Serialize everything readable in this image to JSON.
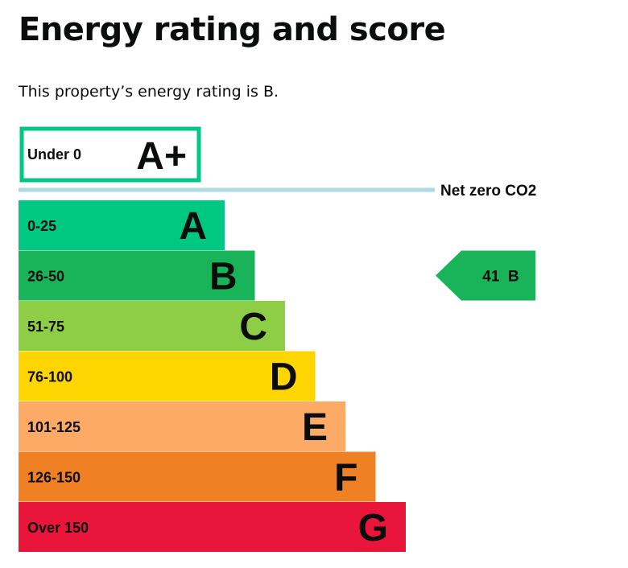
{
  "page": {
    "title": "Energy rating and score",
    "intro": "This property’s energy rating is B."
  },
  "chart_data": {
    "type": "bar",
    "orientation": "horizontal",
    "net_zero_band": {
      "range": "Under 0",
      "letter": "A+",
      "color": "#00c781"
    },
    "net_zero_label": "Net zero CO2",
    "net_zero_line_color": "#add8e6",
    "bands": [
      {
        "range": "0-25",
        "letter": "A",
        "color": "#00c781",
        "text_color": "#0b0c0c"
      },
      {
        "range": "26-50",
        "letter": "B",
        "color": "#19b459",
        "text_color": "#0b0c0c"
      },
      {
        "range": "51-75",
        "letter": "C",
        "color": "#8dce46",
        "text_color": "#0b0c0c"
      },
      {
        "range": "76-100",
        "letter": "D",
        "color": "#ffd500",
        "text_color": "#0b0c0c"
      },
      {
        "range": "101-125",
        "letter": "E",
        "color": "#fcaa65",
        "text_color": "#0b0c0c"
      },
      {
        "range": "126-150",
        "letter": "F",
        "color": "#ef8023",
        "text_color": "#0b0c0c"
      },
      {
        "range": "Over 150",
        "letter": "G",
        "color": "#e9153b",
        "text_color": "#0b0c0c"
      }
    ],
    "current": {
      "score": 41,
      "letter": "B",
      "band_index": 1,
      "color": "#19b459",
      "label": "41  B"
    }
  }
}
